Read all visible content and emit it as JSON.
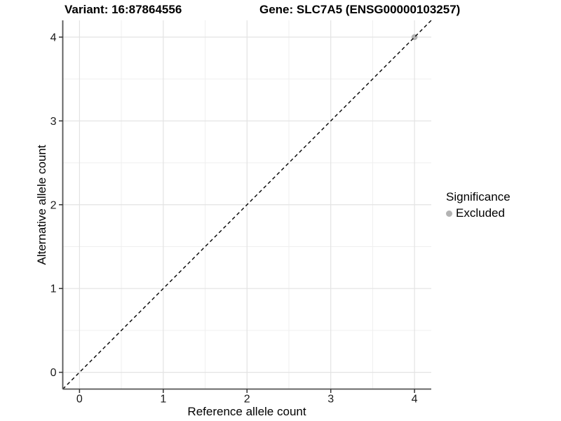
{
  "titles": {
    "variant": "Variant: 16:87864556",
    "gene": "Gene: SLC7A5 (ENSG00000103257)"
  },
  "chart_data": {
    "type": "scatter",
    "titles": [
      "Variant: 16:87864556",
      "Gene: SLC7A5 (ENSG00000103257)"
    ],
    "xlabel": "Reference allele count",
    "ylabel": "Alternative allele count",
    "xlim": [
      -0.2,
      4.2
    ],
    "ylim": [
      -0.2,
      4.2
    ],
    "x_ticks": [
      0,
      1,
      2,
      3,
      4
    ],
    "y_ticks": [
      0,
      1,
      2,
      3,
      4
    ],
    "x_minor_ticks": [
      0.5,
      1.5,
      2.5,
      3.5
    ],
    "y_minor_ticks": [
      0.5,
      1.5,
      2.5,
      3.5
    ],
    "grid": true,
    "series": [
      {
        "name": "Excluded",
        "color": "#b3b3b3",
        "points": [
          {
            "x": 4,
            "y": 4
          }
        ]
      }
    ],
    "reference_line": {
      "type": "identity",
      "slope": 1,
      "intercept": 0,
      "style": "dashed",
      "color": "#000000"
    },
    "legend": {
      "title": "Significance",
      "position": "right",
      "entries": [
        {
          "label": "Excluded",
          "color": "#b3b3b3"
        }
      ]
    }
  },
  "colors": {
    "background": "#ffffff",
    "major_grid": "#e3e3e3",
    "minor_grid": "#efefef",
    "axis_line": "#555555",
    "tick_mark": "#333333",
    "tick_label": "#1a1a1a",
    "point": "#b3b3b3",
    "dashed_line": "#000000"
  }
}
